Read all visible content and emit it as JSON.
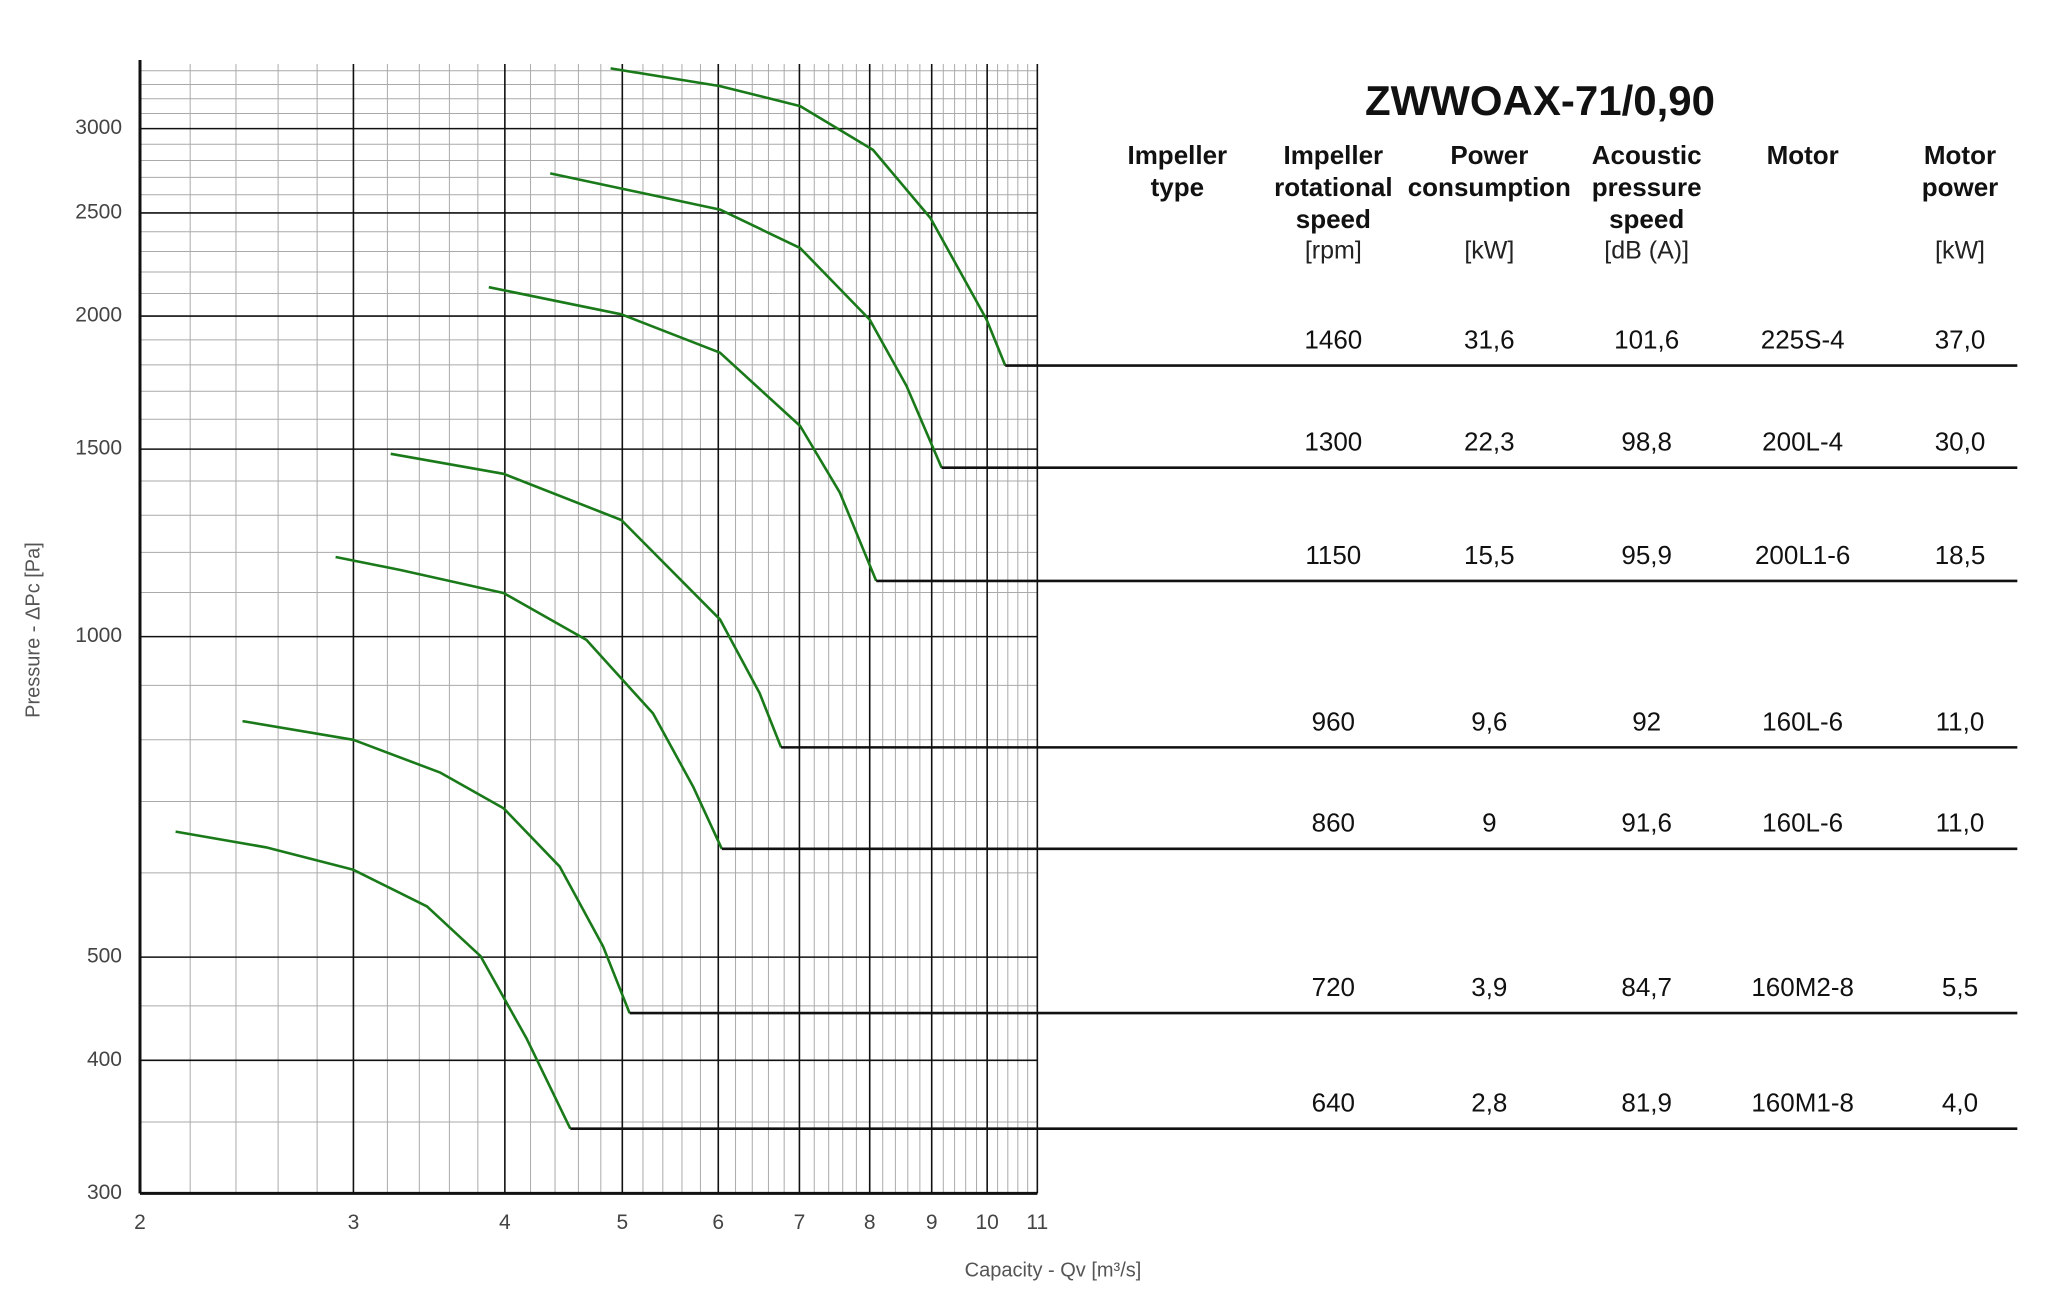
{
  "chart_data": {
    "type": "line",
    "xlabel": "Capacity - Qv [m³/s]",
    "ylabel": "Pressure - ΔPc [Pa]",
    "xscale": "log",
    "yscale": "log",
    "grid": true,
    "xlim": [
      2,
      11
    ],
    "ylim": [
      300,
      3450
    ],
    "xticks": [
      2,
      3,
      4,
      5,
      6,
      7,
      8,
      9,
      10,
      11
    ],
    "yticks": [
      300,
      400,
      500,
      1000,
      1500,
      2000,
      2500,
      3000
    ],
    "x_minor_grid": [
      2.2,
      2.4,
      2.6,
      2.8,
      3.2,
      3.4,
      3.6,
      3.8,
      4.2,
      4.4,
      4.6,
      4.8,
      5.2,
      5.4,
      5.6,
      5.8,
      6.2,
      6.4,
      6.6,
      6.8,
      7.2,
      7.4,
      7.6,
      7.8,
      8.2,
      8.4,
      8.6,
      8.8,
      9.2,
      9.4,
      9.6,
      9.8,
      10.2,
      10.4,
      10.6,
      10.8
    ],
    "y_minor_grid": [
      350,
      450,
      600,
      700,
      800,
      900,
      1100,
      1200,
      1300,
      1400,
      1600,
      1700,
      1800,
      1900,
      2100,
      2200,
      2300,
      2400,
      2600,
      2700,
      2800,
      2900,
      3100,
      3200,
      3300,
      3400
    ],
    "series": [
      {
        "color": "#1a7a1a",
        "x": [
          4.89,
          6.02,
          7.01,
          8.05,
          8.98,
          9.99,
          10.35
        ],
        "values": [
          3417,
          3289,
          3150,
          2865,
          2472,
          1985,
          1797
        ]
      },
      {
        "color": "#1a7a1a",
        "x": [
          4.36,
          6.02,
          7.01,
          8.0,
          8.58,
          9.17
        ],
        "values": [
          2723,
          2518,
          2317,
          1985,
          1720,
          1441
        ]
      },
      {
        "color": "#1a7a1a",
        "x": [
          3.88,
          4.99,
          6.02,
          7.01,
          7.56,
          8.1
        ],
        "values": [
          2129,
          2008,
          1848,
          1577,
          1365,
          1128
        ]
      },
      {
        "color": "#1a7a1a",
        "x": [
          3.22,
          3.99,
          4.99,
          6.02,
          6.49,
          6.76
        ],
        "values": [
          1485,
          1422,
          1287,
          1038,
          885,
          787
        ]
      },
      {
        "color": "#1a7a1a",
        "x": [
          2.9,
          3.28,
          3.99,
          4.67,
          5.3,
          5.72,
          6.04
        ],
        "values": [
          1188,
          1155,
          1099,
          993,
          847,
          723,
          632
        ]
      },
      {
        "color": "#1a7a1a",
        "x": [
          2.43,
          3.0,
          3.54,
          3.99,
          4.44,
          4.82,
          5.07
        ],
        "values": [
          833,
          800,
          745,
          690,
          608,
          512,
          443
        ]
      },
      {
        "color": "#1a7a1a",
        "x": [
          2.14,
          2.54,
          3.0,
          3.45,
          3.82,
          4.17,
          4.53
        ],
        "values": [
          656,
          634,
          604,
          558,
          501,
          419,
          345
        ]
      }
    ]
  },
  "table": {
    "title": "ZWWOAX-71/0,90",
    "headers": [
      {
        "lines": [
          "Impeller",
          "type"
        ]
      },
      {
        "lines": [
          "Impeller",
          "rotational",
          "speed"
        ],
        "unit": "[rpm]"
      },
      {
        "lines": [
          "Power",
          "consumption"
        ],
        "unit": "[kW]"
      },
      {
        "lines": [
          "Acoustic",
          "pressure",
          "speed"
        ],
        "unit": "[dB (A)]"
      },
      {
        "lines": [
          "Motor"
        ]
      },
      {
        "lines": [
          "Motor",
          "power"
        ],
        "unit": "[kW]"
      }
    ],
    "rows": [
      [
        "1460",
        "31,6",
        "101,6",
        "225S-4",
        "37,0"
      ],
      [
        "1300",
        "22,3",
        "98,8",
        "200L-4",
        "30,0"
      ],
      [
        "1150",
        "15,5",
        "95,9",
        "200L1-6",
        "18,5"
      ],
      [
        "960",
        "9,6",
        "92",
        "160L-6",
        "11,0"
      ],
      [
        "860",
        "9",
        "91,6",
        "160L-6",
        "11,0"
      ],
      [
        "720",
        "3,9",
        "84,7",
        "160M2-8",
        "5,5"
      ],
      [
        "640",
        "2,8",
        "81,9",
        "160M1-8",
        "4,0"
      ]
    ]
  }
}
